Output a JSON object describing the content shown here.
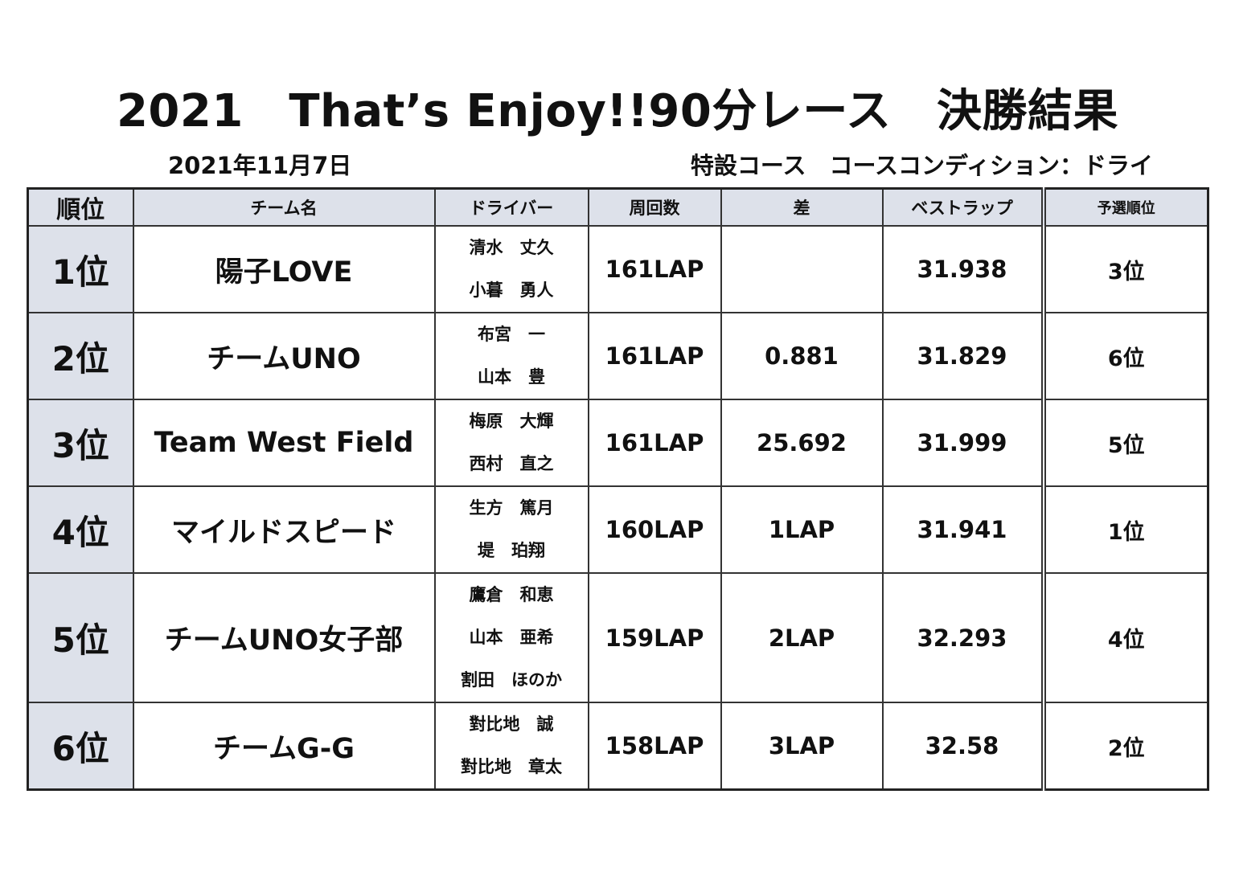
{
  "title": "2021　That’s Enjoy!!90分レース　決勝結果",
  "date": "2021年11月7日",
  "course_condition": "特設コース　コースコンディション：ドライ",
  "headers": {
    "rank": "順位",
    "team": "チーム名",
    "driver": "ドライバー",
    "laps": "周回数",
    "gap": "差",
    "best_lap": "ベストラップ",
    "qualifying": "予選順位"
  },
  "rows": [
    {
      "rank": "1位",
      "team": "陽子LOVE",
      "drivers": [
        "清水　丈久",
        "小暮　勇人"
      ],
      "laps": "161LAP",
      "gap": "",
      "best_lap": "31.938",
      "qualifying": "3位"
    },
    {
      "rank": "2位",
      "team": "チームUNO",
      "drivers": [
        "布宮　一",
        "山本　豊"
      ],
      "laps": "161LAP",
      "gap": "0.881",
      "best_lap": "31.829",
      "qualifying": "6位"
    },
    {
      "rank": "3位",
      "team": "Team West Field",
      "drivers": [
        "梅原　大輝",
        "西村　直之"
      ],
      "laps": "161LAP",
      "gap": "25.692",
      "best_lap": "31.999",
      "qualifying": "5位"
    },
    {
      "rank": "4位",
      "team": "マイルドスピード",
      "drivers": [
        "生方　篤月",
        "堤　珀翔"
      ],
      "laps": "160LAP",
      "gap": "1LAP",
      "best_lap": "31.941",
      "qualifying": "1位"
    },
    {
      "rank": "5位",
      "team": "チームUNO女子部",
      "drivers": [
        "鷹倉　和恵",
        "山本　亜希",
        "割田　ほのか"
      ],
      "laps": "159LAP",
      "gap": "2LAP",
      "best_lap": "32.293",
      "qualifying": "4位"
    },
    {
      "rank": "6位",
      "team": "チームG-G",
      "drivers": [
        "對比地　誠",
        "對比地　章太"
      ],
      "laps": "158LAP",
      "gap": "3LAP",
      "best_lap": "32.58",
      "qualifying": "2位"
    }
  ]
}
